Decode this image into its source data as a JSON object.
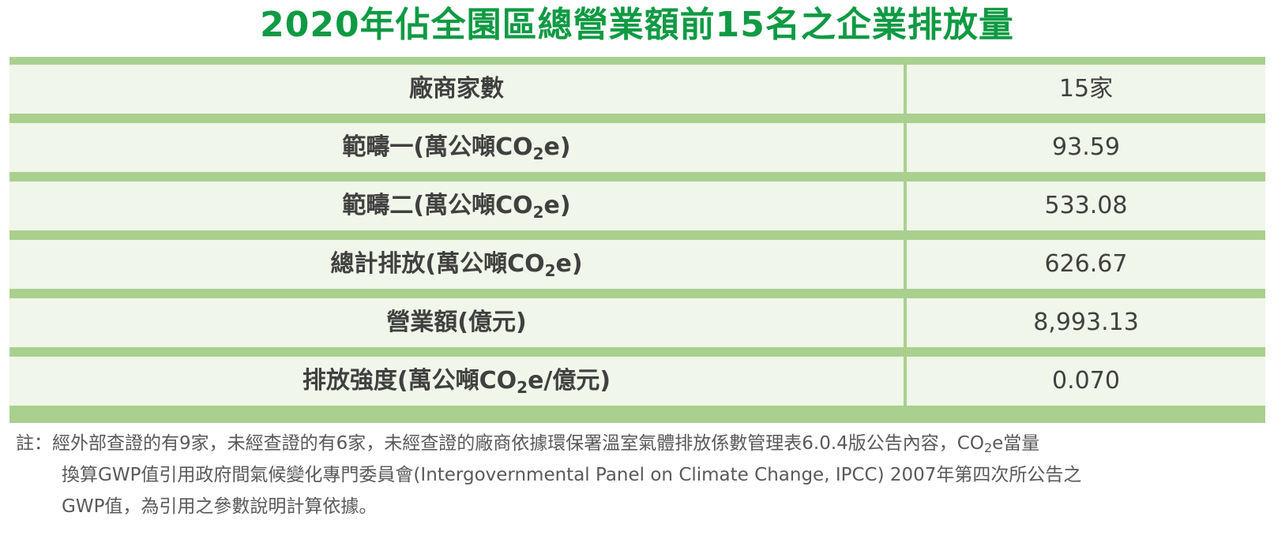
{
  "title": "2020年佔全園區總營業額前15名之企業排放量",
  "table": {
    "rows": [
      {
        "label": "廠商家數",
        "label_pre": "廠商家數",
        "label_sub": "",
        "label_post": "",
        "value": "15家"
      },
      {
        "label": "範疇一(萬公噸CO2e)",
        "label_pre": "範疇一(萬公噸CO",
        "label_sub": "2",
        "label_post": "e)",
        "value": "93.59"
      },
      {
        "label": "範疇二(萬公噸CO2e)",
        "label_pre": "範疇二(萬公噸CO",
        "label_sub": "2",
        "label_post": "e)",
        "value": "533.08"
      },
      {
        "label": "總計排放(萬公噸CO2e)",
        "label_pre": "總計排放(萬公噸CO",
        "label_sub": "2",
        "label_post": "e)",
        "value": "626.67"
      },
      {
        "label": "營業額(億元)",
        "label_pre": "營業額(億元)",
        "label_sub": "",
        "label_post": "",
        "value": "8,993.13"
      },
      {
        "label": "排放強度(萬公噸CO2e/億元)",
        "label_pre": "排放強度(萬公噸CO",
        "label_sub": "2",
        "label_post": "e/億元)",
        "value": "0.070"
      }
    ]
  },
  "note": {
    "line1_pre": "註：經外部查證的有9家，未經查證的有6家，未經查證的廠商依據環保署溫室氣體排放係數管理表6.0.4版公告內容，CO",
    "line1_sub": "2",
    "line1_post": "e當量",
    "line2": "換算GWP值引用政府間氣候變化專門委員會(Intergovernmental Panel on Climate Change, IPCC) 2007年第四次所公告之",
    "line3": "GWP值，為引用之參數說明計算依據。"
  }
}
